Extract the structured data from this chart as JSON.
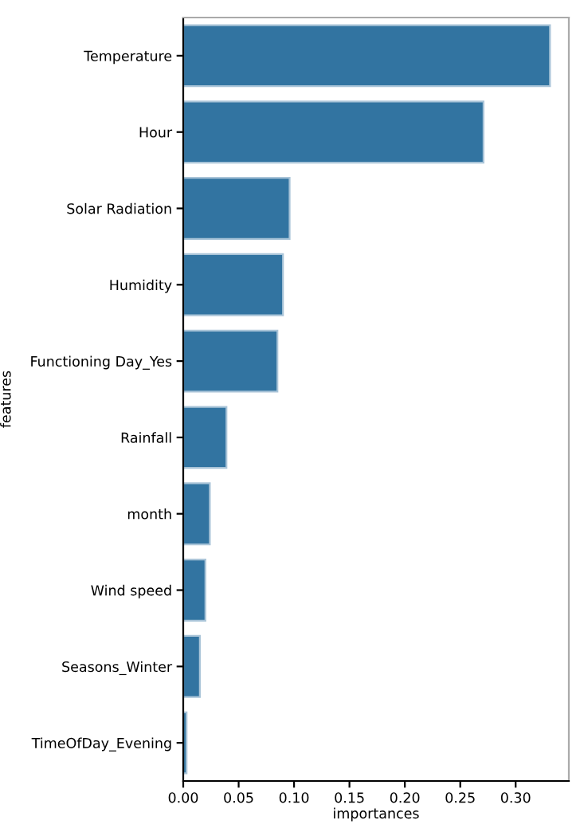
{
  "chart_data": {
    "type": "bar",
    "orientation": "horizontal",
    "xlabel": "importances",
    "ylabel": "features",
    "categories": [
      "Temperature",
      "Hour",
      "Solar Radiation",
      "Humidity",
      "Functioning Day_Yes",
      "Rainfall",
      "month",
      "Wind speed",
      "Seasons_Winter",
      "TimeOfDay_Evening"
    ],
    "values": [
      0.331,
      0.271,
      0.096,
      0.09,
      0.085,
      0.039,
      0.024,
      0.02,
      0.015,
      0.003
    ],
    "color": "#3274a1",
    "xlim": [
      0,
      0.348
    ],
    "xticks": [
      {
        "value": 0,
        "label": "0.00"
      },
      {
        "value": 0.05,
        "label": "0.05"
      },
      {
        "value": 0.1,
        "label": "0.10"
      },
      {
        "value": 0.15,
        "label": "0.15"
      },
      {
        "value": 0.2,
        "label": "0.20"
      },
      {
        "value": 0.25,
        "label": "0.25"
      },
      {
        "value": 0.3,
        "label": "0.30"
      }
    ]
  }
}
